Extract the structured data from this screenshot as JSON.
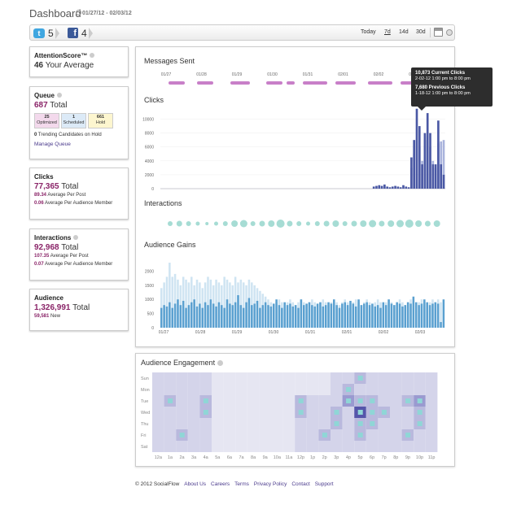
{
  "header": {
    "title": "Dashboard",
    "date_range": "01/27/12 - 02/03/12"
  },
  "toolbar": {
    "twitter_count": "5",
    "facebook_count": "4",
    "ranges": [
      "Today",
      "7d",
      "14d",
      "30d"
    ],
    "selected_range": "7d",
    "twitter_glyph": "t",
    "facebook_glyph": "f"
  },
  "attention": {
    "title": "AttentionScore™",
    "value": "46",
    "label": "Your Average"
  },
  "queue": {
    "title": "Queue",
    "total": "687",
    "total_label": "Total",
    "boxes": [
      {
        "value": "25",
        "label": "Optimized",
        "color": "#f3d9ec"
      },
      {
        "value": "1",
        "label": "Scheduled",
        "color": "#dceaf7"
      },
      {
        "value": "661",
        "label": "Hold",
        "color": "#fdf6cf"
      }
    ],
    "trending_count": "0",
    "trending_label": "Trending Candidates on Hold",
    "manage_link": "Manage Queue"
  },
  "clicks": {
    "title": "Clicks",
    "total": "77,365",
    "total_label": "Total",
    "stat1_value": "89.34",
    "stat1_label": "Average Per Post",
    "stat2_value": "0.06",
    "stat2_label": "Average Per Audience Member"
  },
  "interactions": {
    "title": "Interactions",
    "total": "92,968",
    "total_label": "Total",
    "stat1_value": "107.35",
    "stat1_label": "Average Per Post",
    "stat2_value": "0.07",
    "stat2_label": "Average Per Audience Member"
  },
  "audience": {
    "title": "Audience",
    "total": "1,326,991",
    "total_label": "Total",
    "new_value": "59,581",
    "new_label": "New"
  },
  "main": {
    "messages_title": "Messages Sent",
    "clicks_title": "Clicks",
    "interactions_title": "Interactions",
    "gains_title": "Audience Gains",
    "date_ticks": [
      "01/27",
      "01/28",
      "01/29",
      "01/30",
      "01/31",
      "02/01",
      "02/02",
      "02/03"
    ]
  },
  "tooltip": {
    "current_value": "10,873 Current Clicks",
    "current_range": "2-02-12 1:00 pm to 8:00 pm",
    "previous_value": "7,680 Previous Clicks",
    "previous_range": "1-18-12 1:00 pm to 8:00 pm"
  },
  "engagement": {
    "title": "Audience Engagement",
    "days": [
      "Sun",
      "Mon",
      "Tue",
      "Wed",
      "Thu",
      "Fri",
      "Sat"
    ],
    "hours": [
      "12a",
      "1a",
      "2a",
      "3a",
      "4a",
      "5a",
      "6a",
      "7a",
      "8a",
      "9a",
      "10a",
      "11a",
      "12p",
      "1p",
      "2p",
      "3p",
      "4p",
      "5p",
      "6p",
      "7p",
      "8p",
      "9p",
      "10p",
      "11p"
    ]
  },
  "footer": {
    "copyright": "© 2012 SocialFlow",
    "links": [
      "About Us",
      "Careers",
      "Terms",
      "Privacy Policy",
      "Contact",
      "Support"
    ]
  },
  "chart_data": [
    {
      "type": "bar",
      "title": "Clicks",
      "ylim": [
        0,
        11000
      ],
      "yticks": [
        0,
        2000,
        4000,
        6000,
        8000,
        10000
      ],
      "series": [
        {
          "values": [
            0,
            0,
            0,
            0,
            0,
            0,
            0,
            0,
            0,
            0,
            0,
            0,
            0,
            0,
            0,
            0,
            0,
            0,
            0,
            0,
            0,
            0,
            0,
            0,
            0,
            0,
            0,
            0,
            0,
            0,
            0,
            0,
            0,
            0,
            0,
            0,
            0,
            0,
            0,
            0,
            0,
            0,
            0,
            0,
            0,
            0,
            0,
            0,
            0,
            0,
            0,
            0,
            0,
            0,
            0,
            0,
            0,
            0,
            0,
            0,
            0,
            0,
            0,
            0,
            0,
            0,
            0,
            0,
            0,
            0,
            0,
            0,
            0,
            0,
            0,
            0,
            0,
            0,
            0,
            300,
            400,
            500,
            400,
            600,
            300,
            200,
            300,
            400,
            300,
            200,
            500,
            300,
            200,
            4500,
            7000,
            11500,
            9000,
            3500,
            8000,
            10873,
            8000,
            3500,
            3500,
            9800,
            3500,
            2000
          ]
        },
        {
          "values": [
            0,
            0,
            0,
            0,
            0,
            0,
            0,
            0,
            0,
            0,
            0,
            0,
            0,
            0,
            0,
            0,
            0,
            0,
            0,
            0,
            0,
            0,
            0,
            0,
            0,
            0,
            0,
            0,
            0,
            0,
            0,
            0,
            0,
            0,
            0,
            0,
            0,
            0,
            0,
            0,
            0,
            0,
            0,
            0,
            0,
            0,
            0,
            0,
            0,
            0,
            0,
            0,
            0,
            0,
            0,
            0,
            0,
            0,
            0,
            0,
            0,
            0,
            0,
            0,
            0,
            0,
            0,
            0,
            0,
            0,
            0,
            0,
            0,
            0,
            0,
            0,
            0,
            0,
            0,
            0,
            0,
            0,
            0,
            0,
            0,
            0,
            0,
            0,
            0,
            0,
            0,
            0,
            0,
            3000,
            5000,
            7000,
            6000,
            4000,
            7000,
            7680,
            6000,
            4000,
            3000,
            6500,
            6800,
            7000
          ]
        }
      ]
    },
    {
      "type": "bar",
      "title": "Audience Gains",
      "ylim": [
        0,
        2300
      ],
      "yticks": [
        0,
        500,
        1000,
        1500,
        2000
      ],
      "series": [
        {
          "values": [
            700,
            800,
            750,
            900,
            700,
            850,
            1000,
            800,
            950,
            700,
            800,
            900,
            1000,
            750,
            850,
            700,
            900,
            800,
            1000,
            850,
            750,
            900,
            800,
            700,
            1000,
            850,
            800,
            900,
            1150,
            800,
            700,
            900,
            1050,
            800,
            850,
            950,
            700,
            800,
            900,
            800,
            750,
            850,
            1000,
            800,
            700,
            900,
            800,
            850,
            750,
            800,
            700,
            1000,
            800,
            850,
            900,
            800,
            750,
            850,
            900,
            750,
            800,
            900,
            850,
            1000,
            800,
            700,
            850,
            900,
            800,
            950,
            850,
            750,
            1000,
            800,
            850,
            900,
            800,
            850,
            750,
            800,
            700,
            900,
            800,
            1000,
            850,
            800,
            900,
            850,
            750,
            800,
            900,
            850,
            1100,
            900,
            800,
            850,
            1000,
            900,
            800,
            850,
            900,
            850,
            200,
            1000
          ]
        },
        {
          "values": [
            1400,
            1600,
            1800,
            2300,
            1800,
            1900,
            1700,
            1500,
            1800,
            1700,
            1600,
            1800,
            1500,
            1700,
            1600,
            1400,
            1600,
            1800,
            1700,
            1500,
            1700,
            1600,
            1500,
            1800,
            1700,
            1600,
            1500,
            1800,
            1600,
            1700,
            1600,
            1500,
            1700,
            1600,
            1500,
            1400,
            1300,
            1200,
            1100,
            1000,
            900,
            800,
            900,
            1000,
            900,
            800,
            900,
            1000,
            900,
            800,
            900,
            1000,
            900,
            800,
            900,
            1000,
            900,
            800,
            900,
            1000,
            900,
            800,
            900,
            1000,
            900,
            800,
            900,
            1000,
            900,
            800,
            900,
            1000,
            900,
            800,
            900,
            1000,
            900,
            800,
            900,
            1000,
            900,
            800,
            900,
            1000,
            900,
            800,
            900,
            1000,
            900,
            800,
            900,
            1000,
            900,
            800,
            900,
            1000,
            900,
            800,
            900,
            1000,
            900,
            1000,
            900
          ]
        }
      ]
    }
  ]
}
